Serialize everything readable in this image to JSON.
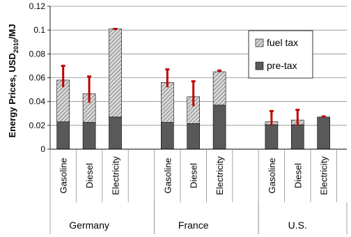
{
  "chart_data": {
    "type": "bar",
    "stacked": true,
    "ylabel": {
      "main": "Energy Prices, USD",
      "sub": "2010",
      "suffix": "/MJ"
    },
    "ylim": [
      0,
      0.12
    ],
    "yticks": [
      "0",
      "0.02",
      "0.04",
      "0.06",
      "0.08",
      "0.1",
      "0.12"
    ],
    "ytick_values": [
      0,
      0.02,
      0.04,
      0.06,
      0.08,
      0.1,
      0.12
    ],
    "grid": true,
    "legend_position": "upper right",
    "groups": [
      {
        "name": "Germany",
        "categories": [
          "Gasoline",
          "Diesel",
          "Electricity"
        ]
      },
      {
        "name": "France",
        "categories": [
          "Gasoline",
          "Diesel",
          "Electricity"
        ]
      },
      {
        "name": "U.S.",
        "categories": [
          "Gasoline",
          "Diesel",
          "Electricity"
        ]
      }
    ],
    "series": [
      {
        "name": "pre-tax",
        "color": "#595959",
        "values": [
          0.023,
          0.0225,
          0.027,
          0.0225,
          0.0215,
          0.037,
          0.0205,
          0.0205,
          0.027
        ]
      },
      {
        "name": "fuel tax",
        "color": "#bfbfbf",
        "pattern": "hatch",
        "values": [
          0.035,
          0.024,
          0.074,
          0.0335,
          0.0225,
          0.028,
          0.0025,
          0.004,
          0.0
        ]
      }
    ],
    "error_bars": {
      "color": "#c00000",
      "low": [
        0.052,
        0.039,
        0.1,
        0.052,
        0.036,
        0.065,
        0.02,
        0.02,
        0.0265
      ],
      "high": [
        0.07,
        0.061,
        0.101,
        0.067,
        0.057,
        0.066,
        0.032,
        0.033,
        0.0275
      ]
    }
  }
}
